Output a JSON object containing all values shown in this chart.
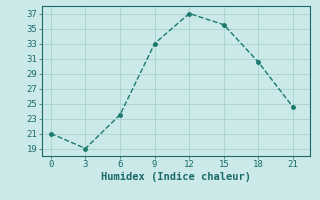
{
  "x": [
    0,
    3,
    6,
    9,
    12,
    15,
    18,
    21
  ],
  "y": [
    21,
    19,
    23.5,
    33,
    37,
    35.5,
    30.5,
    24.5
  ],
  "line_color": "#1a7a6e",
  "marker": "o",
  "marker_size": 2.5,
  "background_color": "#cce9e9",
  "grid_color": "#afd4d4",
  "xlabel": "Humidex (Indice chaleur)",
  "xlim": [
    -0.8,
    22.5
  ],
  "ylim": [
    18.0,
    38.0
  ],
  "xticks": [
    0,
    3,
    6,
    9,
    12,
    15,
    18,
    21
  ],
  "yticks": [
    19,
    21,
    23,
    25,
    27,
    29,
    31,
    33,
    35,
    37
  ],
  "font_color": "#1a6a6a",
  "xlabel_fontsize": 7.5,
  "tick_fontsize": 6.5,
  "linewidth": 1.0
}
